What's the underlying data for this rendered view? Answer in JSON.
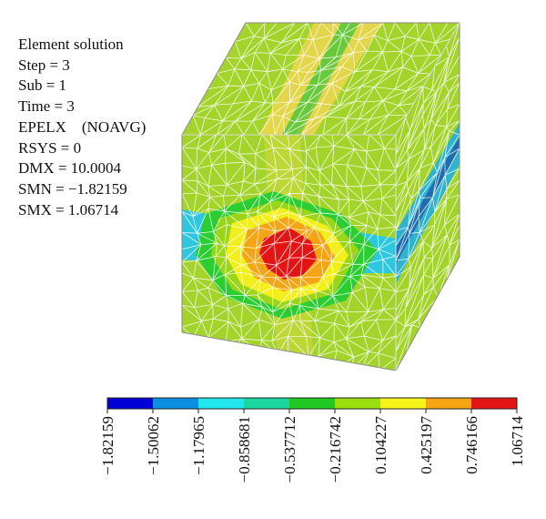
{
  "solution_info": [
    "Element solution",
    "Step = 3",
    "Sub = 1",
    "Time = 3",
    "EPELX    (NOAVG)",
    "RSYS = 0",
    "DMX = 10.0004",
    "SMN = −1.82159",
    "SMX = 1.06714"
  ],
  "legend": {
    "colors": [
      "#0000d6",
      "#0b8fe0",
      "#22e6ee",
      "#1ad79f",
      "#22c922",
      "#9bdf11",
      "#f7f41a",
      "#f5a612",
      "#e31515"
    ],
    "ticks": [
      "−1.82159",
      "−1.50062",
      "−1.17965",
      "−0.858681",
      "−0.537712",
      "−0.216742",
      "0.104227",
      "0.425197",
      "0.746166",
      "1.06714"
    ]
  },
  "model_colors": {
    "base": "#a4d42c",
    "band_light": "#c9da3a",
    "band_yellow": "#e4d646",
    "side_band": "#2fb3ce",
    "side_band_dark": "#1c5aa8"
  }
}
